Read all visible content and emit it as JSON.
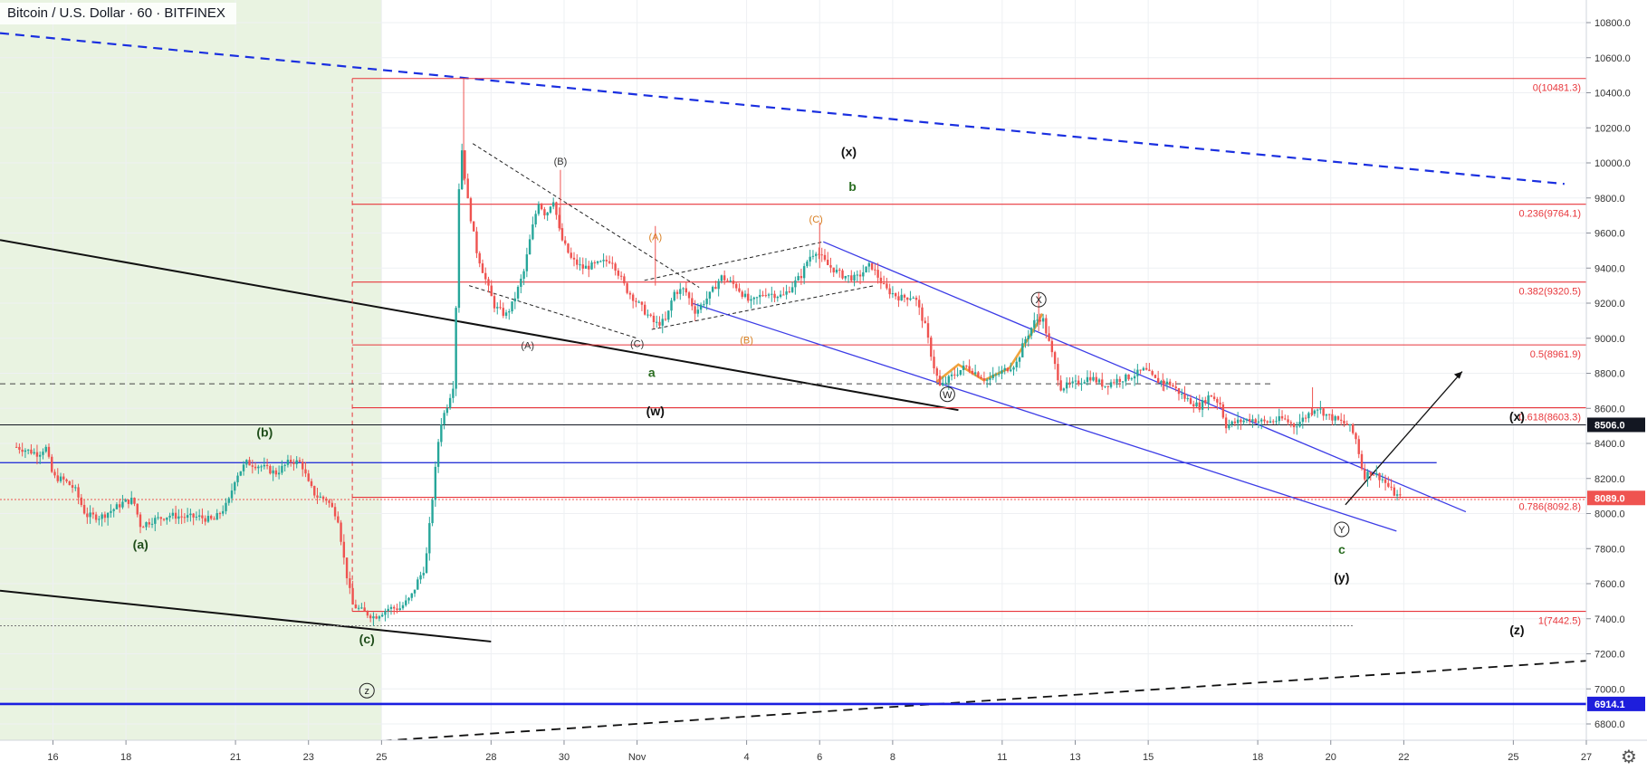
{
  "header": {
    "symbol_title": "Bitcoin / U.S. Dollar · 60 · BITFINEX"
  },
  "settings_icon": "gear-icon",
  "chart_data": {
    "type": "candlestick",
    "symbol": "Bitcoin / U.S. Dollar",
    "interval": "60",
    "exchange": "BITFINEX",
    "x_axis_labels": [
      {
        "label": "16",
        "day": 16
      },
      {
        "label": "18",
        "day": 18
      },
      {
        "label": "21",
        "day": 21
      },
      {
        "label": "23",
        "day": 23
      },
      {
        "label": "25",
        "day": 25
      },
      {
        "label": "28",
        "day": 28
      },
      {
        "label": "30",
        "day": 30
      },
      {
        "label": "Nov",
        "day": 32
      },
      {
        "label": "4",
        "day": 35
      },
      {
        "label": "6",
        "day": 37
      },
      {
        "label": "8",
        "day": 39
      },
      {
        "label": "11",
        "day": 42
      },
      {
        "label": "13",
        "day": 44
      },
      {
        "label": "15",
        "day": 46
      },
      {
        "label": "18",
        "day": 49
      },
      {
        "label": "20",
        "day": 51
      },
      {
        "label": "22",
        "day": 53
      },
      {
        "label": "25",
        "day": 56
      },
      {
        "label": "27",
        "day": 58
      }
    ],
    "y_axis": {
      "range": [
        6640,
        10980
      ],
      "ticks": [
        "10800.0",
        "10600.0",
        "10400.0",
        "10200.0",
        "10000.0",
        "9800.0",
        "9600.0",
        "9400.0",
        "9200.0",
        "9000.0",
        "8800.0",
        "8600.0",
        "8400.0",
        "8200.0",
        "8000.0",
        "7800.0",
        "7600.0",
        "7400.0",
        "7200.0",
        "7000.0",
        "6800.0"
      ]
    },
    "price_path": [
      [
        15.0,
        8380
      ],
      [
        15.6,
        8340
      ],
      [
        15.8,
        8380
      ],
      [
        16.0,
        8210
      ],
      [
        16.3,
        8190
      ],
      [
        16.6,
        8140
      ],
      [
        16.9,
        7990
      ],
      [
        17.3,
        7980
      ],
      [
        17.7,
        8030
      ],
      [
        17.9,
        8060
      ],
      [
        18.2,
        8080
      ],
      [
        18.4,
        7930
      ],
      [
        18.7,
        7960
      ],
      [
        19.2,
        7990
      ],
      [
        19.6,
        7980
      ],
      [
        20.0,
        7980
      ],
      [
        20.4,
        7960
      ],
      [
        20.8,
        8060
      ],
      [
        21.0,
        8210
      ],
      [
        21.3,
        8290
      ],
      [
        21.7,
        8270
      ],
      [
        22.1,
        8230
      ],
      [
        22.5,
        8300
      ],
      [
        22.8,
        8290
      ],
      [
        23.0,
        8170
      ],
      [
        23.2,
        8100
      ],
      [
        23.5,
        8080
      ],
      [
        23.8,
        7980
      ],
      [
        24.0,
        7700
      ],
      [
        24.2,
        7480
      ],
      [
        24.5,
        7440
      ],
      [
        24.8,
        7410
      ],
      [
        25.2,
        7460
      ],
      [
        25.5,
        7460
      ],
      [
        25.8,
        7520
      ],
      [
        26.0,
        7620
      ],
      [
        26.2,
        7700
      ],
      [
        26.4,
        8100
      ],
      [
        26.6,
        8500
      ],
      [
        26.8,
        8620
      ],
      [
        27.0,
        8760
      ],
      [
        27.1,
        9800
      ],
      [
        27.2,
        10080
      ],
      [
        27.35,
        9800
      ],
      [
        27.6,
        9500
      ],
      [
        27.9,
        9300
      ],
      [
        28.1,
        9180
      ],
      [
        28.4,
        9130
      ],
      [
        28.6,
        9200
      ],
      [
        28.9,
        9380
      ],
      [
        29.1,
        9600
      ],
      [
        29.3,
        9780
      ],
      [
        29.5,
        9700
      ],
      [
        29.7,
        9800
      ],
      [
        29.9,
        9580
      ],
      [
        30.2,
        9450
      ],
      [
        30.5,
        9400
      ],
      [
        30.9,
        9420
      ],
      [
        31.3,
        9450
      ],
      [
        31.7,
        9280
      ],
      [
        32.1,
        9180
      ],
      [
        32.5,
        9080
      ],
      [
        32.8,
        9100
      ],
      [
        33.0,
        9260
      ],
      [
        33.3,
        9280
      ],
      [
        33.6,
        9150
      ],
      [
        34.0,
        9250
      ],
      [
        34.3,
        9350
      ],
      [
        34.7,
        9300
      ],
      [
        35.1,
        9200
      ],
      [
        35.5,
        9260
      ],
      [
        36.0,
        9240
      ],
      [
        36.5,
        9360
      ],
      [
        36.7,
        9460
      ],
      [
        36.9,
        9500
      ],
      [
        37.2,
        9420
      ],
      [
        37.6,
        9360
      ],
      [
        38.0,
        9340
      ],
      [
        38.4,
        9420
      ],
      [
        38.8,
        9280
      ],
      [
        39.2,
        9230
      ],
      [
        39.6,
        9240
      ],
      [
        39.9,
        9060
      ],
      [
        40.1,
        8860
      ],
      [
        40.3,
        8720
      ],
      [
        40.6,
        8780
      ],
      [
        41.0,
        8840
      ],
      [
        41.3,
        8800
      ],
      [
        41.6,
        8760
      ],
      [
        42.0,
        8810
      ],
      [
        42.4,
        8860
      ],
      [
        42.6,
        8980
      ],
      [
        42.9,
        9100
      ],
      [
        43.1,
        9120
      ],
      [
        43.3,
        8960
      ],
      [
        43.6,
        8720
      ],
      [
        44.0,
        8740
      ],
      [
        44.4,
        8780
      ],
      [
        44.8,
        8730
      ],
      [
        45.1,
        8760
      ],
      [
        45.5,
        8780
      ],
      [
        45.9,
        8820
      ],
      [
        46.2,
        8760
      ],
      [
        46.6,
        8740
      ],
      [
        47.0,
        8660
      ],
      [
        47.4,
        8610
      ],
      [
        47.7,
        8680
      ],
      [
        48.0,
        8620
      ],
      [
        48.1,
        8500
      ],
      [
        48.4,
        8520
      ],
      [
        48.8,
        8540
      ],
      [
        49.2,
        8520
      ],
      [
        49.7,
        8540
      ],
      [
        50.0,
        8500
      ],
      [
        50.3,
        8550
      ],
      [
        50.6,
        8610
      ],
      [
        50.9,
        8560
      ],
      [
        51.2,
        8530
      ],
      [
        51.5,
        8500
      ],
      [
        51.7,
        8420
      ],
      [
        51.9,
        8210
      ],
      [
        52.1,
        8240
      ],
      [
        52.4,
        8200
      ],
      [
        52.7,
        8120
      ],
      [
        52.9,
        8089
      ]
    ],
    "fib_levels": [
      {
        "label": "0(10481.3)",
        "price": 10481.3
      },
      {
        "label": "0.236(9764.1)",
        "price": 9764.1
      },
      {
        "label": "0.382(9320.5)",
        "price": 9320.5
      },
      {
        "label": "0.5(8961.9)",
        "price": 8961.9
      },
      {
        "label": "0.618(8603.3)",
        "price": 8603.3
      },
      {
        "label": "0.786(8092.8)",
        "price": 8092.8
      },
      {
        "label": "1(7442.5)",
        "price": 7442.5
      }
    ],
    "price_tags": [
      {
        "label": "8506.0",
        "price": 8506.0,
        "color": "#131722"
      },
      {
        "label": "8089.0",
        "price": 8089.0,
        "color": "#ef5350"
      },
      {
        "label": "6914.1",
        "price": 6914.1,
        "color": "#1e1edc"
      }
    ],
    "wave_labels": {
      "left_panel": [
        {
          "text": "(b)",
          "day": 21.8,
          "price": 8440
        },
        {
          "text": "(a)",
          "day": 18.4,
          "price": 7800
        },
        {
          "text": "(c)",
          "day": 24.6,
          "price": 7260
        }
      ],
      "circled": [
        {
          "text": "z",
          "day": 24.6,
          "price": 6990
        },
        {
          "text": "X",
          "day": 43.0,
          "price": 9220
        },
        {
          "text": "W",
          "day": 40.5,
          "price": 8680
        },
        {
          "text": "Y",
          "day": 51.3,
          "price": 7910
        }
      ],
      "minor": [
        {
          "text": "(B)",
          "day": 29.9,
          "price": 9990
        },
        {
          "text": "(A)",
          "day": 29.0,
          "price": 8940
        },
        {
          "text": "(C)",
          "day": 32.0,
          "price": 8950
        },
        {
          "text": "(A)",
          "day": 32.5,
          "price": 9560,
          "color": "#d87f22"
        },
        {
          "text": "(C)",
          "day": 36.9,
          "price": 9660,
          "color": "#d87f22"
        },
        {
          "text": "(B)",
          "day": 35.0,
          "price": 8970,
          "color": "#d87f22"
        }
      ],
      "primary": [
        {
          "text": "(x)",
          "day": 37.8,
          "price": 10040
        },
        {
          "text": "b",
          "day": 37.9,
          "price": 9840,
          "color": "#2a6d21"
        },
        {
          "text": "a",
          "day": 32.4,
          "price": 8780,
          "color": "#2a6d21"
        },
        {
          "text": "(w)",
          "day": 32.5,
          "price": 8560
        },
        {
          "text": "c",
          "day": 51.3,
          "price": 7770,
          "color": "#2a6d21"
        },
        {
          "text": "(y)",
          "day": 51.3,
          "price": 7610
        },
        {
          "text": "(x)",
          "day": 56.1,
          "price": 8530
        },
        {
          "text": "(z)",
          "day": 56.1,
          "price": 7310
        }
      ]
    }
  }
}
